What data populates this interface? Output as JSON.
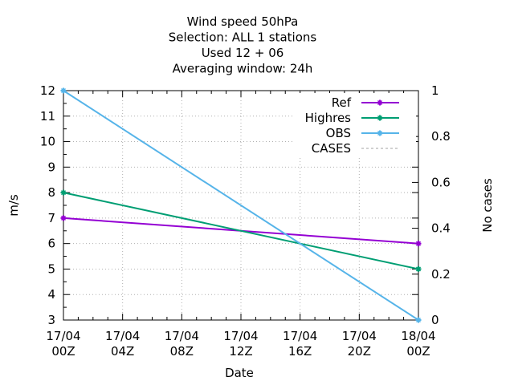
{
  "chart_data": {
    "type": "line",
    "title_lines": [
      "Wind speed 50hPa",
      "Selection: ALL      1 stations",
      "Used  12 + 06",
      "Averaging window: 24h"
    ],
    "xlabel": "Date",
    "ylabel": "m/s",
    "y2label": "No cases",
    "x_ticks": [
      [
        "17/04",
        "00Z"
      ],
      [
        "17/04",
        "04Z"
      ],
      [
        "17/04",
        "08Z"
      ],
      [
        "17/04",
        "12Z"
      ],
      [
        "17/04",
        "16Z"
      ],
      [
        "17/04",
        "20Z"
      ],
      [
        "18/04",
        "00Z"
      ]
    ],
    "x_tick_hours": [
      0,
      4,
      8,
      12,
      16,
      20,
      24
    ],
    "xlim_hours": [
      0,
      24
    ],
    "ylim": [
      3,
      12
    ],
    "y_ticks": [
      3,
      4,
      5,
      6,
      7,
      8,
      9,
      10,
      11,
      12
    ],
    "y2lim": [
      0,
      1
    ],
    "y2_ticks": [
      "0",
      "0.2",
      "0.4",
      "0.6",
      "0.8",
      "1"
    ],
    "grid": true,
    "legend_position": "top-right",
    "series": [
      {
        "name": "Ref",
        "color": "#9400d3",
        "x_hours": [
          0,
          24
        ],
        "values": [
          7,
          6
        ],
        "marker": true,
        "dashed": false
      },
      {
        "name": "Highres",
        "color": "#009e73",
        "x_hours": [
          0,
          24
        ],
        "values": [
          8,
          5
        ],
        "marker": true,
        "dashed": false
      },
      {
        "name": "OBS",
        "color": "#56b4e9",
        "x_hours": [
          0,
          24
        ],
        "values": [
          12,
          3
        ],
        "marker": true,
        "dashed": false
      },
      {
        "name": "CASES",
        "color": "#a0a0a0",
        "x_hours": [],
        "values": [],
        "marker": false,
        "dashed": true
      }
    ]
  }
}
